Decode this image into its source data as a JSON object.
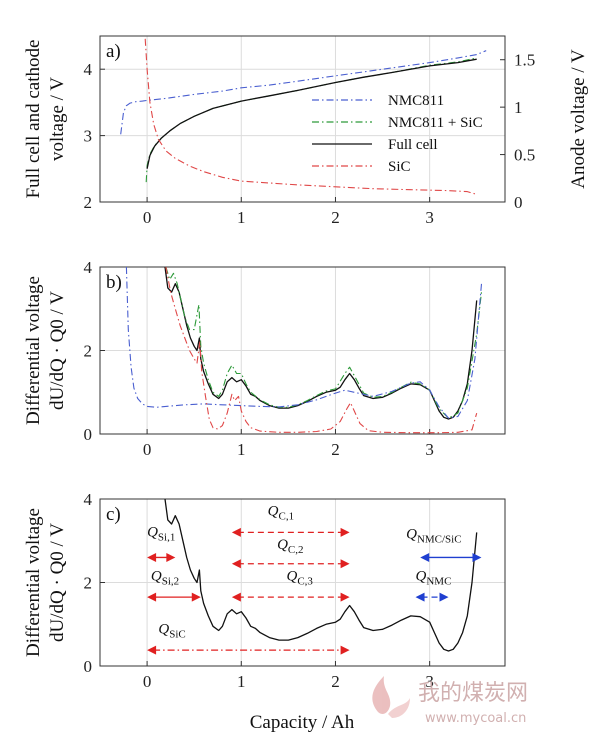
{
  "figure": {
    "colors": {
      "full_cell": "#111111",
      "nmc811": "#4a5fd0",
      "nmc_sic": "#2e9a3a",
      "sic": "#e04848",
      "annotation_red": "#e02020",
      "annotation_blue": "#1f3fd0",
      "grid": "#dcdcdc"
    },
    "x_axis_label": "Capacity / Ah",
    "x_ticks": [
      "0",
      "1",
      "2",
      "3"
    ],
    "watermark": {
      "text_cn": "我的煤炭网",
      "url": "www.mycoal.cn"
    }
  },
  "chart_data": [
    {
      "id": "a",
      "type": "line",
      "panel_label": "a)",
      "ylabel": "Full cell and cathode voltage / V",
      "ylabel_lines": [
        "Full cell and cathode",
        "voltage / V"
      ],
      "y2label": "Anode voltage / V",
      "xlim": [
        -0.5,
        3.8
      ],
      "ylim": [
        2,
        4.5
      ],
      "y2lim": [
        0,
        1.75
      ],
      "yticks": [
        "2",
        "3",
        "4"
      ],
      "y2ticks": [
        "0",
        "0.5",
        "1",
        "1.5"
      ],
      "legend_position": "center-right",
      "legend": [
        "NMC811",
        "NMC811 + SiC",
        "Full cell",
        "SiC"
      ],
      "series": [
        {
          "name": "NMC811",
          "axis": "left",
          "style": "dashdot",
          "color": "nmc811",
          "x": [
            -0.28,
            -0.25,
            -0.22,
            -0.18,
            -0.12,
            -0.05,
            0.0,
            0.2,
            0.5,
            0.8,
            1.0,
            1.3,
            1.6,
            2.0,
            2.3,
            2.6,
            3.0,
            3.3,
            3.5,
            3.6
          ],
          "y": [
            3.02,
            3.35,
            3.45,
            3.49,
            3.51,
            3.52,
            3.53,
            3.56,
            3.62,
            3.67,
            3.72,
            3.76,
            3.82,
            3.9,
            3.96,
            4.02,
            4.1,
            4.17,
            4.22,
            4.28
          ]
        },
        {
          "name": "NMC811 + SiC",
          "axis": "left",
          "style": "dashdot",
          "color": "nmc_sic",
          "x": [
            -0.01,
            0.0,
            0.03,
            0.08,
            0.15,
            0.25,
            0.35,
            0.5,
            0.7,
            1.0,
            1.3,
            1.6,
            2.0,
            2.3,
            2.6,
            3.0,
            3.3,
            3.5
          ],
          "y": [
            2.3,
            2.55,
            2.72,
            2.85,
            2.96,
            3.08,
            3.18,
            3.29,
            3.41,
            3.52,
            3.6,
            3.68,
            3.8,
            3.88,
            3.95,
            4.06,
            4.11,
            4.17
          ]
        },
        {
          "name": "Full cell",
          "axis": "left",
          "style": "solid",
          "color": "full_cell",
          "x": [
            0.0,
            0.03,
            0.08,
            0.15,
            0.25,
            0.35,
            0.5,
            0.7,
            1.0,
            1.3,
            1.6,
            2.0,
            2.3,
            2.6,
            3.0,
            3.3,
            3.5
          ],
          "y": [
            2.5,
            2.7,
            2.84,
            2.96,
            3.08,
            3.18,
            3.29,
            3.41,
            3.52,
            3.6,
            3.68,
            3.8,
            3.88,
            3.95,
            4.05,
            4.1,
            4.15
          ]
        },
        {
          "name": "SiC",
          "axis": "right",
          "style": "dashdot",
          "color": "sic",
          "x": [
            -0.02,
            0.0,
            0.03,
            0.07,
            0.12,
            0.2,
            0.3,
            0.45,
            0.6,
            0.8,
            1.0,
            1.3,
            1.6,
            2.0,
            2.4,
            2.8,
            3.2,
            3.4,
            3.5
          ],
          "y": [
            1.72,
            1.4,
            1.05,
            0.82,
            0.66,
            0.54,
            0.46,
            0.38,
            0.32,
            0.26,
            0.22,
            0.2,
            0.18,
            0.16,
            0.14,
            0.13,
            0.12,
            0.11,
            0.08
          ]
        }
      ]
    },
    {
      "id": "b",
      "type": "line",
      "panel_label": "b)",
      "ylabel": "Differential voltage dU/dQ · Q0 / V",
      "ylabel_lines": [
        "Differential voltage",
        "dU/dQ · Q0 / V"
      ],
      "xlim": [
        -0.5,
        3.8
      ],
      "ylim": [
        0,
        4
      ],
      "yticks": [
        "0",
        "2",
        "4"
      ],
      "series": [
        {
          "name": "Full cell",
          "style": "solid",
          "color": "full_cell",
          "x": [
            0.19,
            0.22,
            0.26,
            0.3,
            0.34,
            0.38,
            0.42,
            0.46,
            0.5,
            0.53,
            0.555,
            0.57,
            0.6,
            0.65,
            0.7,
            0.76,
            0.8,
            0.85,
            0.9,
            0.95,
            1.0,
            1.05,
            1.1,
            1.15,
            1.2,
            1.3,
            1.4,
            1.5,
            1.6,
            1.7,
            1.8,
            1.9,
            2.0,
            2.05,
            2.1,
            2.15,
            2.2,
            2.25,
            2.3,
            2.4,
            2.5,
            2.6,
            2.7,
            2.8,
            2.9,
            3.0,
            3.05,
            3.1,
            3.15,
            3.2,
            3.25,
            3.3,
            3.35,
            3.4,
            3.45,
            3.5
          ],
          "y": [
            4.0,
            3.5,
            3.4,
            3.6,
            3.4,
            3.0,
            2.6,
            2.3,
            2.1,
            2.0,
            2.3,
            1.8,
            1.5,
            1.2,
            0.95,
            0.85,
            0.95,
            1.25,
            1.35,
            1.25,
            1.3,
            1.15,
            0.95,
            0.9,
            0.8,
            0.68,
            0.62,
            0.62,
            0.68,
            0.78,
            0.9,
            1.0,
            1.05,
            1.12,
            1.3,
            1.45,
            1.3,
            1.1,
            0.92,
            0.85,
            0.88,
            0.98,
            1.1,
            1.2,
            1.18,
            1.05,
            0.8,
            0.55,
            0.4,
            0.36,
            0.4,
            0.55,
            0.8,
            1.2,
            2.0,
            3.2
          ]
        },
        {
          "name": "NMC811 + SiC",
          "style": "dashdot",
          "color": "nmc_sic",
          "x": [
            0.2,
            0.24,
            0.28,
            0.32,
            0.36,
            0.4,
            0.45,
            0.5,
            0.55,
            0.57,
            0.6,
            0.65,
            0.7,
            0.76,
            0.8,
            0.85,
            0.9,
            0.95,
            1.0,
            1.05,
            1.1,
            1.2,
            1.3,
            1.4,
            1.5,
            1.6,
            1.7,
            1.8,
            1.9,
            2.0,
            2.1,
            2.15,
            2.2,
            2.3,
            2.4,
            2.5,
            2.6,
            2.7,
            2.8,
            2.9,
            3.0,
            3.1,
            3.2,
            3.3,
            3.4,
            3.5,
            3.55
          ],
          "y": [
            4.0,
            3.7,
            3.85,
            3.6,
            3.2,
            2.8,
            2.5,
            2.5,
            3.1,
            2.1,
            1.7,
            1.3,
            1.0,
            0.9,
            1.05,
            1.45,
            1.65,
            1.45,
            1.45,
            1.2,
            1.0,
            0.82,
            0.7,
            0.64,
            0.64,
            0.7,
            0.8,
            0.92,
            1.03,
            1.08,
            1.45,
            1.6,
            1.4,
            0.98,
            0.88,
            0.9,
            1.0,
            1.12,
            1.24,
            1.2,
            1.05,
            0.6,
            0.38,
            0.5,
            1.1,
            2.4,
            3.4
          ]
        },
        {
          "name": "NMC811",
          "style": "dashdot",
          "color": "nmc811",
          "x": [
            -0.22,
            -0.2,
            -0.17,
            -0.14,
            -0.1,
            -0.05,
            0.0,
            0.1,
            0.2,
            0.4,
            0.6,
            0.8,
            1.0,
            1.2,
            1.4,
            1.6,
            1.8,
            2.0,
            2.1,
            2.2,
            2.4,
            2.6,
            2.8,
            2.9,
            3.0,
            3.1,
            3.2,
            3.3,
            3.4,
            3.48,
            3.55
          ],
          "y": [
            4.0,
            2.5,
            1.6,
            1.1,
            0.85,
            0.72,
            0.66,
            0.64,
            0.66,
            0.7,
            0.72,
            0.7,
            0.68,
            0.66,
            0.65,
            0.7,
            0.82,
            0.98,
            1.05,
            1.0,
            0.9,
            1.02,
            1.22,
            1.25,
            1.05,
            0.65,
            0.38,
            0.42,
            0.8,
            1.8,
            3.6
          ]
        },
        {
          "name": "SiC",
          "style": "dashdot",
          "color": "sic",
          "x": [
            0.2,
            0.25,
            0.3,
            0.35,
            0.4,
            0.45,
            0.5,
            0.53,
            0.56,
            0.58,
            0.62,
            0.66,
            0.7,
            0.75,
            0.8,
            0.85,
            0.9,
            0.93,
            0.97,
            1.0,
            1.05,
            1.1,
            1.2,
            1.4,
            1.6,
            1.8,
            1.95,
            2.05,
            2.12,
            2.16,
            2.2,
            2.26,
            2.35,
            2.5,
            2.8,
            3.1,
            3.3,
            3.45,
            3.5
          ],
          "y": [
            4.0,
            3.4,
            3.0,
            2.6,
            2.3,
            2.0,
            1.8,
            1.7,
            2.2,
            1.5,
            0.9,
            0.35,
            0.15,
            0.12,
            0.2,
            0.5,
            0.95,
            0.8,
            0.9,
            0.55,
            0.3,
            0.15,
            0.07,
            0.04,
            0.04,
            0.06,
            0.12,
            0.3,
            0.6,
            0.75,
            0.55,
            0.25,
            0.08,
            0.04,
            0.03,
            0.03,
            0.04,
            0.1,
            0.5
          ]
        }
      ]
    },
    {
      "id": "c",
      "type": "line",
      "panel_label": "c)",
      "ylabel": "Differential voltage dU/dQ · Q0 / V",
      "ylabel_lines": [
        "Differential voltage",
        "dU/dQ · Q0 / V"
      ],
      "xlim": [
        -0.5,
        3.8
      ],
      "ylim": [
        0,
        4
      ],
      "yticks": [
        "0",
        "2",
        "4"
      ],
      "series": [
        {
          "name": "Full cell",
          "style": "solid",
          "color": "full_cell",
          "x": [
            0.19,
            0.22,
            0.26,
            0.3,
            0.34,
            0.38,
            0.42,
            0.46,
            0.5,
            0.53,
            0.555,
            0.57,
            0.6,
            0.65,
            0.7,
            0.76,
            0.8,
            0.85,
            0.9,
            0.95,
            1.0,
            1.05,
            1.1,
            1.15,
            1.2,
            1.3,
            1.4,
            1.5,
            1.6,
            1.7,
            1.8,
            1.9,
            2.0,
            2.05,
            2.1,
            2.15,
            2.2,
            2.25,
            2.3,
            2.4,
            2.5,
            2.6,
            2.7,
            2.8,
            2.9,
            3.0,
            3.05,
            3.1,
            3.15,
            3.2,
            3.25,
            3.3,
            3.35,
            3.4,
            3.45,
            3.5
          ],
          "y": [
            4.0,
            3.5,
            3.4,
            3.6,
            3.4,
            3.0,
            2.6,
            2.3,
            2.1,
            2.0,
            2.3,
            1.8,
            1.5,
            1.2,
            0.95,
            0.85,
            0.95,
            1.25,
            1.35,
            1.25,
            1.3,
            1.15,
            0.95,
            0.9,
            0.8,
            0.68,
            0.62,
            0.62,
            0.68,
            0.78,
            0.9,
            1.0,
            1.05,
            1.12,
            1.3,
            1.45,
            1.3,
            1.1,
            0.92,
            0.85,
            0.88,
            0.98,
            1.1,
            1.2,
            1.18,
            1.05,
            0.8,
            0.55,
            0.4,
            0.36,
            0.4,
            0.55,
            0.8,
            1.2,
            2.0,
            3.2
          ]
        }
      ],
      "annotations": [
        {
          "id": "Q_Si1",
          "main": "Q",
          "sub": "Si,1",
          "color": "annotation_red",
          "style": "solid",
          "x0": 0.0,
          "x1": 0.3,
          "y": 2.6,
          "label_x": 0.0,
          "label_y": 3.1
        },
        {
          "id": "Q_Si2",
          "main": "Q",
          "sub": "Si,2",
          "color": "annotation_red",
          "style": "solid",
          "x0": 0.0,
          "x1": 0.57,
          "y": 1.65,
          "label_x": 0.04,
          "label_y": 2.05
        },
        {
          "id": "Q_C1",
          "main": "Q",
          "sub": "C,1",
          "color": "annotation_red",
          "style": "dashed",
          "x0": 0.9,
          "x1": 2.15,
          "y": 3.2,
          "label_x": 1.28,
          "label_y": 3.6
        },
        {
          "id": "Q_C2",
          "main": "Q",
          "sub": "C,2",
          "color": "annotation_red",
          "style": "dashed",
          "x0": 0.9,
          "x1": 2.15,
          "y": 2.45,
          "label_x": 1.38,
          "label_y": 2.8
        },
        {
          "id": "Q_C3",
          "main": "Q",
          "sub": "C,3",
          "color": "annotation_red",
          "style": "dashed",
          "x0": 0.9,
          "x1": 2.15,
          "y": 1.65,
          "label_x": 1.48,
          "label_y": 2.05
        },
        {
          "id": "Q_SiC",
          "main": "Q",
          "sub": "SiC",
          "color": "annotation_red",
          "style": "dashdot",
          "x0": 0.0,
          "x1": 2.15,
          "y": 0.38,
          "label_x": 0.12,
          "label_y": 0.78
        },
        {
          "id": "Q_NMC_SiC",
          "main": "Q",
          "sub": "NMC/SiC",
          "color": "annotation_blue",
          "style": "solid",
          "x0": 2.9,
          "x1": 3.55,
          "y": 2.6,
          "label_x": 2.75,
          "label_y": 3.05
        },
        {
          "id": "Q_NMC",
          "main": "Q",
          "sub": "NMC",
          "color": "annotation_blue",
          "style": "dashed",
          "x0": 2.85,
          "x1": 3.2,
          "y": 1.65,
          "label_x": 2.85,
          "label_y": 2.05
        }
      ]
    }
  ]
}
